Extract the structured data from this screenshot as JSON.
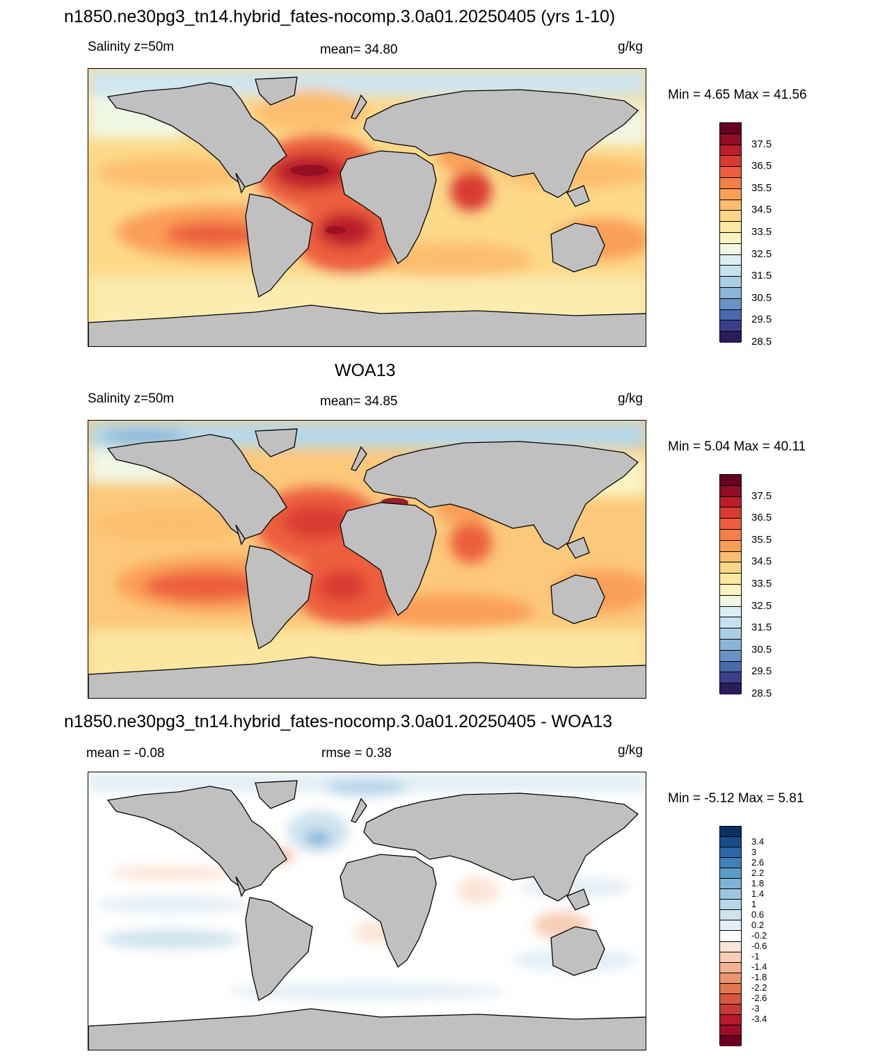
{
  "panels": [
    {
      "id": "model",
      "title": "n1850.ne30pg3_tn14.hybrid_fates-nocomp.3.0a01.20250405 (yrs 1-10)",
      "left_label": "Salinity z=50m",
      "center_label": "mean=  34.80",
      "units": "g/kg",
      "minmax": "Min =   4.65 Max =  41.56",
      "colorbar": {
        "colors": [
          "#2a1c5a",
          "#3a3f8c",
          "#4b6aac",
          "#6a92c4",
          "#8cb6d8",
          "#a9cfe5",
          "#c4e3ee",
          "#daeff3",
          "#f0f8e4",
          "#fbf4c2",
          "#fde99e",
          "#fdd586",
          "#fcbd6e",
          "#fa9f58",
          "#f57f48",
          "#ec5e3c",
          "#d93a30",
          "#bb1f2a",
          "#8e0d25",
          "#650020"
        ],
        "labels": [
          "37.5",
          "36.5",
          "35.5",
          "34.5",
          "33.5",
          "32.5",
          "31.5",
          "30.5",
          "29.5",
          "28.5"
        ]
      }
    },
    {
      "id": "obs",
      "title": "WOA13",
      "left_label": "Salinity z=50m",
      "center_label": "mean=  34.85",
      "units": "g/kg",
      "minmax": "Min =   5.04 Max =  40.11",
      "colorbar": {
        "colors": [
          "#2a1c5a",
          "#3a3f8c",
          "#4b6aac",
          "#6a92c4",
          "#8cb6d8",
          "#a9cfe5",
          "#c4e3ee",
          "#daeff3",
          "#f0f8e4",
          "#fbf4c2",
          "#fde99e",
          "#fdd586",
          "#fcbd6e",
          "#fa9f58",
          "#f57f48",
          "#ec5e3c",
          "#d93a30",
          "#bb1f2a",
          "#8e0d25",
          "#650020"
        ],
        "labels": [
          "37.5",
          "36.5",
          "35.5",
          "34.5",
          "33.5",
          "32.5",
          "31.5",
          "30.5",
          "29.5",
          "28.5"
        ]
      }
    },
    {
      "id": "diff",
      "title": "n1850.ne30pg3_tn14.hybrid_fates-nocomp.3.0a01.20250405 - WOA13",
      "left_label": "mean =  -0.08",
      "center_label": "rmse =   0.38",
      "units": "g/kg",
      "minmax": "Min =  -5.12 Max =   5.81",
      "colorbar": {
        "colors": [
          "#6b0020",
          "#9d0d26",
          "#b7182b",
          "#c83a36",
          "#d65840",
          "#e2764f",
          "#eb9470",
          "#f3b294",
          "#f8cdb6",
          "#fce4d6",
          "#ffffff",
          "#e3eef6",
          "#cfe3ef",
          "#b7d6e9",
          "#9cc6e0",
          "#7fb2d6",
          "#5d9bc9",
          "#3f82bb",
          "#2a67a6",
          "#184d8c",
          "#0a3163"
        ],
        "labels": [
          "3.4",
          "3",
          "2.6",
          "2.2",
          "1.8",
          "1.4",
          "1",
          "0.6",
          "0.2",
          "-0.2",
          "-0.6",
          "-1",
          "-1.4",
          "-1.8",
          "-2.2",
          "-2.6",
          "-3",
          "-3.4"
        ]
      }
    }
  ]
}
